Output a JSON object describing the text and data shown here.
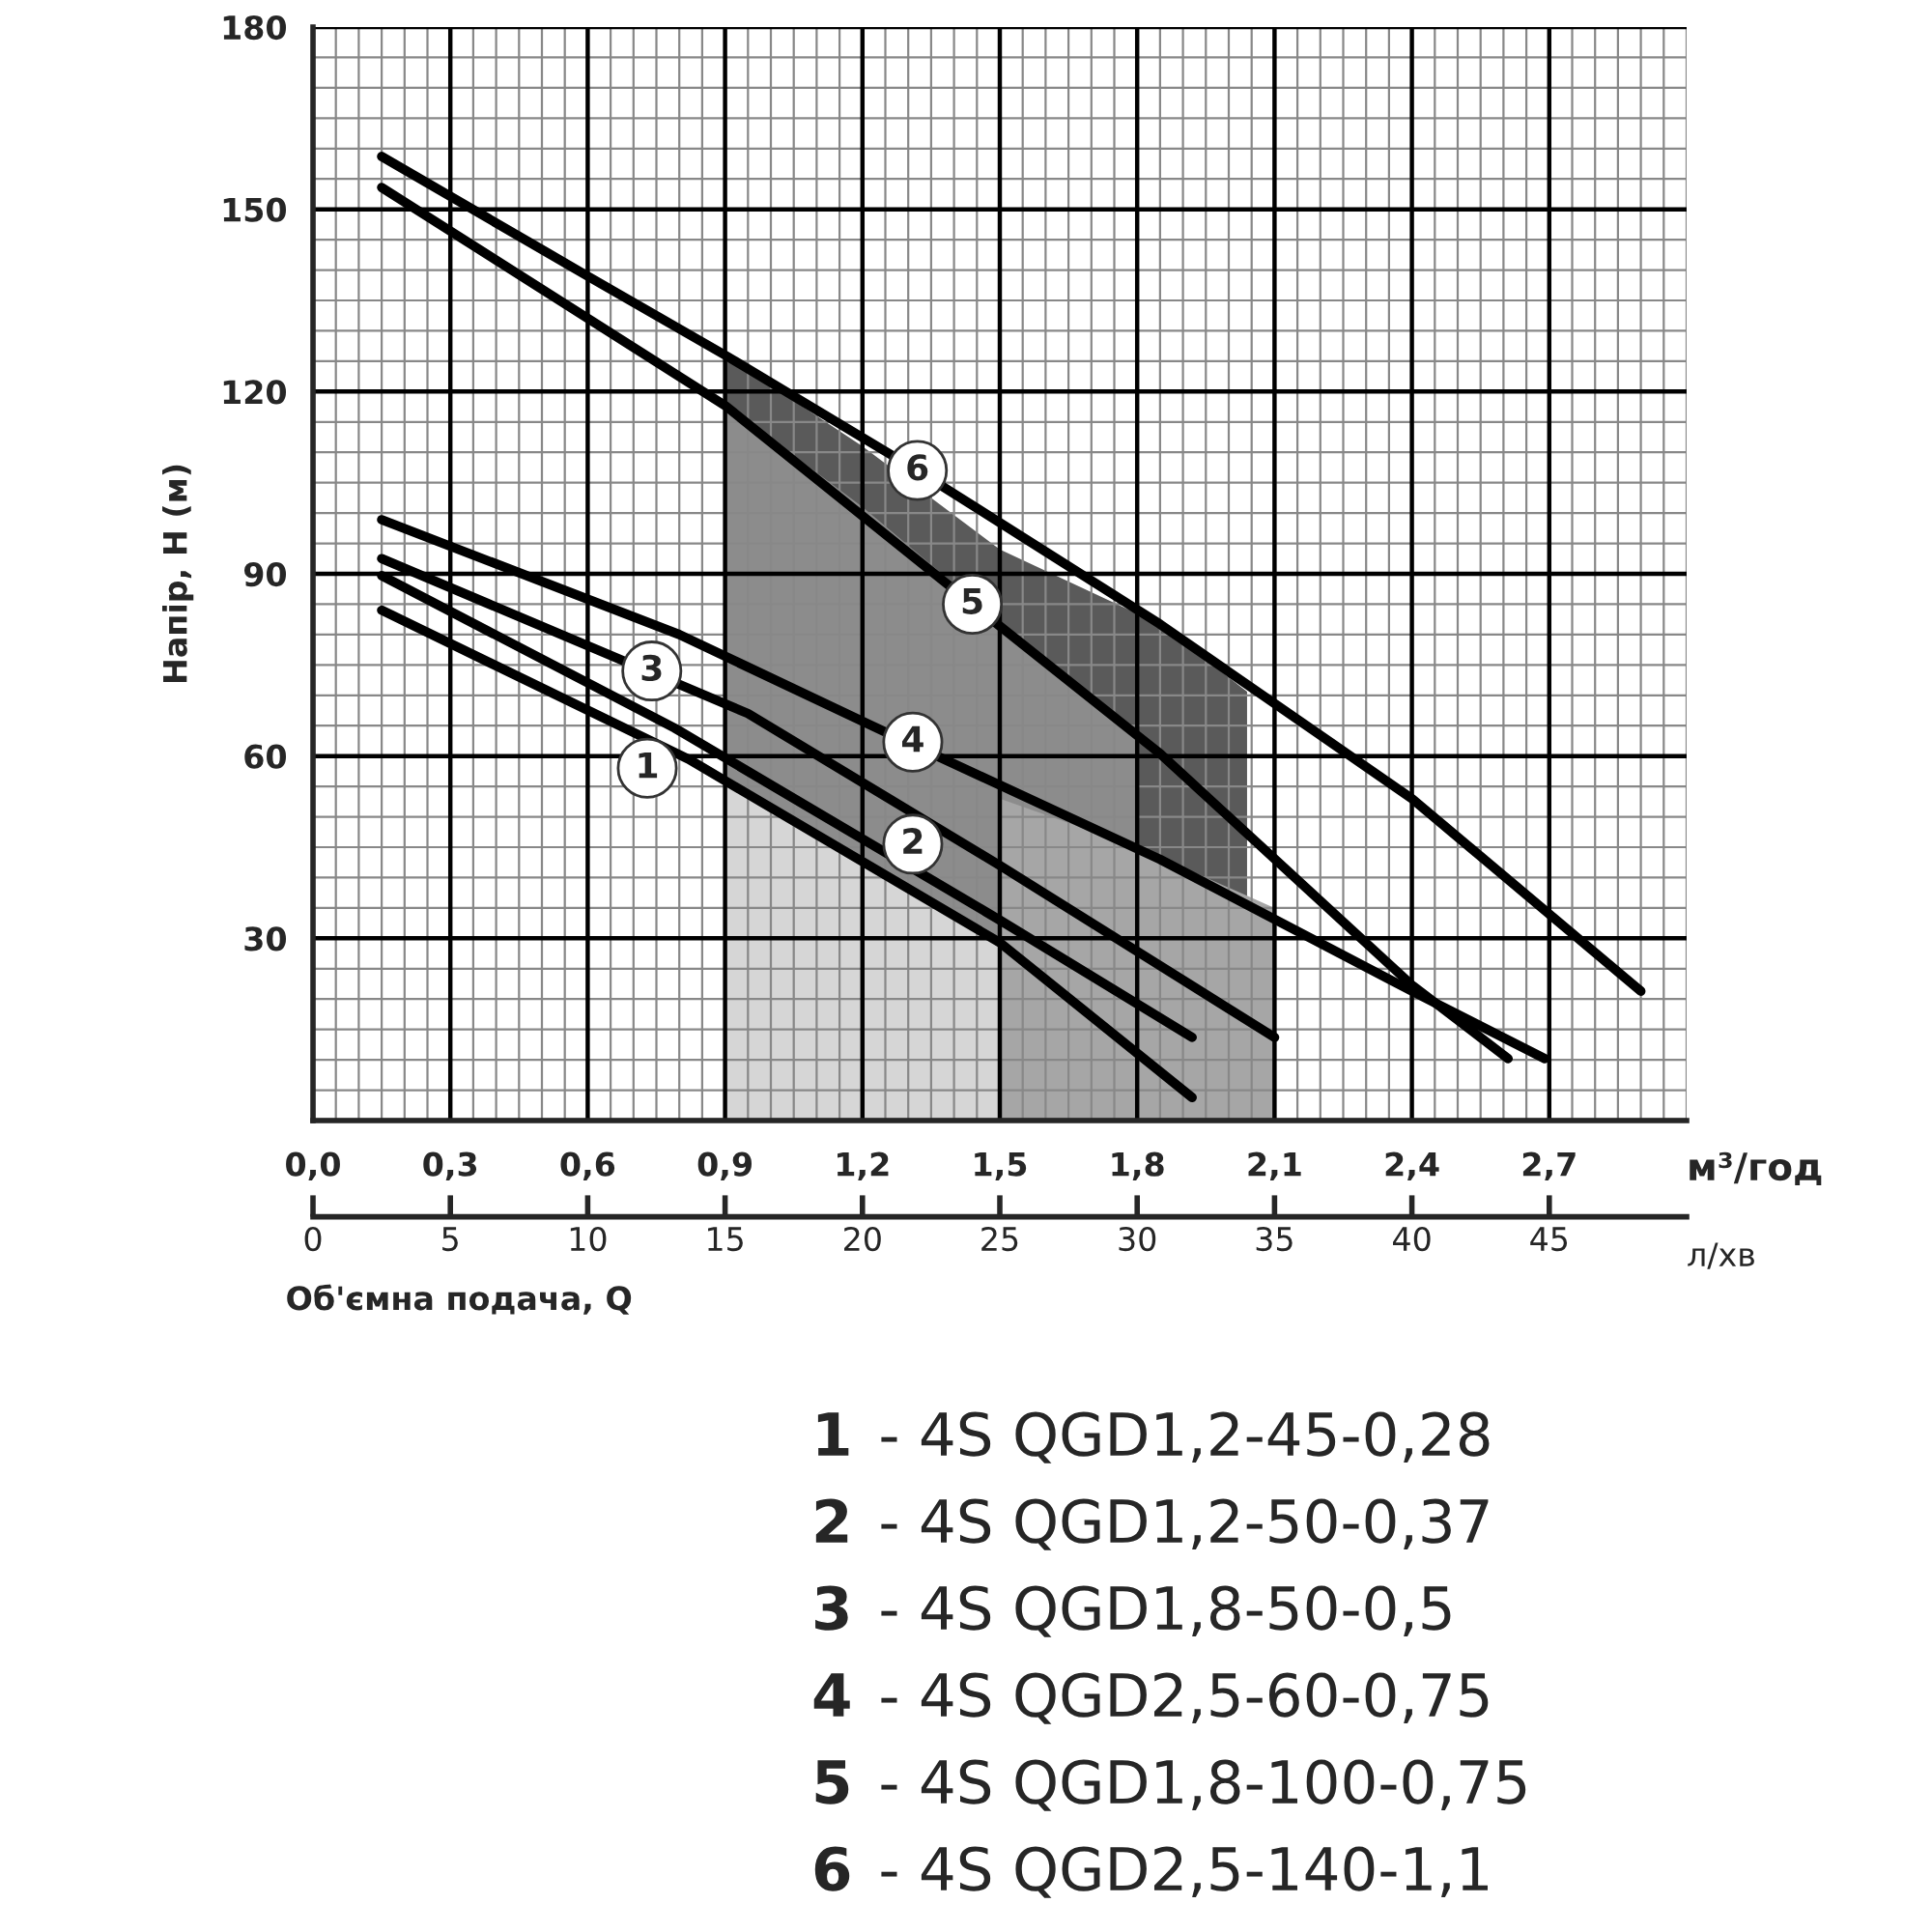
{
  "chart_data": {
    "type": "line",
    "xlabel": "м³/год",
    "x2label": "л/хв",
    "ylabel": "Напір, Н (м)",
    "xlim": [
      0,
      3.0
    ],
    "ylim": [
      0,
      180
    ],
    "xticks": [
      {
        "value": 0,
        "label": "0,0"
      },
      {
        "value": 0.3,
        "label": "0,3"
      },
      {
        "value": 0.6,
        "label": "0,6"
      },
      {
        "value": 0.9,
        "label": "0,9"
      },
      {
        "value": 1.2,
        "label": "1,2"
      },
      {
        "value": 1.5,
        "label": "1,5"
      },
      {
        "value": 1.8,
        "label": "1,8"
      },
      {
        "value": 2.1,
        "label": "2,1"
      },
      {
        "value": 2.4,
        "label": "2,4"
      },
      {
        "value": 2.7,
        "label": "2,7"
      }
    ],
    "x2lim": [
      0,
      50
    ],
    "x2ticks": [
      0,
      5,
      10,
      15,
      20,
      25,
      30,
      35,
      40,
      45
    ],
    "yticks": [
      {
        "value": 0,
        "label": null
      },
      30,
      60,
      90,
      120,
      150,
      180
    ],
    "grid": true,
    "marker": "none",
    "line_style": "solid",
    "series": [
      {
        "type": "area",
        "color": "#5a5a5a",
        "x": [
          0.9,
          1.2,
          1.5,
          1.85,
          2.04
        ],
        "values": [
          126,
          111,
          94,
          81.7,
          70.6
        ]
      },
      {
        "type": "area",
        "color": "#8c8c8c",
        "x": [
          0.9,
          1.2,
          1.5,
          1.8
        ],
        "values": [
          118,
          101,
          82,
          63
        ]
      },
      {
        "type": "area",
        "color": "#a6a6a6",
        "x": [
          1.5,
          1.8,
          2.04,
          2.1
        ],
        "values": [
          53,
          45,
          37,
          35
        ]
      },
      {
        "type": "area",
        "color": "#d6d6d6",
        "x": [
          0.9,
          1.2,
          1.5
        ],
        "values": [
          56,
          43,
          29.3
        ]
      },
      {
        "color": "#000000",
        "x": [
          0.15,
          0.82,
          1.5,
          1.92
        ],
        "values": [
          84,
          59.5,
          29.3,
          3.8
        ]
      },
      {
        "color": "#000000",
        "x": [
          0.15,
          0.79,
          1.5,
          1.92
        ],
        "values": [
          89.7,
          64.6,
          33,
          13.7
        ]
      },
      {
        "color": "#000000",
        "x": [
          0.15,
          0.95,
          1.5,
          2.1
        ],
        "values": [
          92.5,
          67,
          42,
          13.7
        ]
      },
      {
        "color": "#000000",
        "x": [
          0.15,
          0.8,
          1.22,
          1.85,
          2.4,
          2.69
        ],
        "values": [
          98.9,
          80,
          65,
          43,
          21.3,
          10.2
        ]
      },
      {
        "color": "#000000",
        "x": [
          0.15,
          0.9,
          1.44,
          1.85,
          2.4,
          2.61
        ],
        "values": [
          153.6,
          117.7,
          85,
          60.4,
          22.3,
          10.2
        ]
      },
      {
        "color": "#000000",
        "x": [
          0.15,
          0.6,
          0.9,
          1.32,
          1.85,
          2.4,
          2.9
        ],
        "values": [
          158.7,
          139,
          126,
          107,
          81.7,
          53,
          21.3
        ]
      }
    ],
    "annotations": [
      {
        "text": "1",
        "x": 0.73,
        "y": 58
      },
      {
        "text": "2",
        "x": 1.31,
        "y": 45.5
      },
      {
        "text": "3",
        "x": 0.74,
        "y": 74
      },
      {
        "text": "4",
        "x": 1.31,
        "y": 62.3
      },
      {
        "text": "5",
        "x": 1.44,
        "y": 85
      },
      {
        "text": "6",
        "x": 1.32,
        "y": 107
      },
      "Об'ємна подача, Q",
      "1 - 4S QGD1,2-45-0,28",
      "2 - 4S QGD1,2-50-0,37",
      "3 - 4S QGD1,8-50-0,5",
      "4 - 4S QGD2,5-60-0,75",
      "5 - 4S QGD1,8-100-0,75",
      "6 - 4S QGD2,5-140-1,1"
    ]
  }
}
